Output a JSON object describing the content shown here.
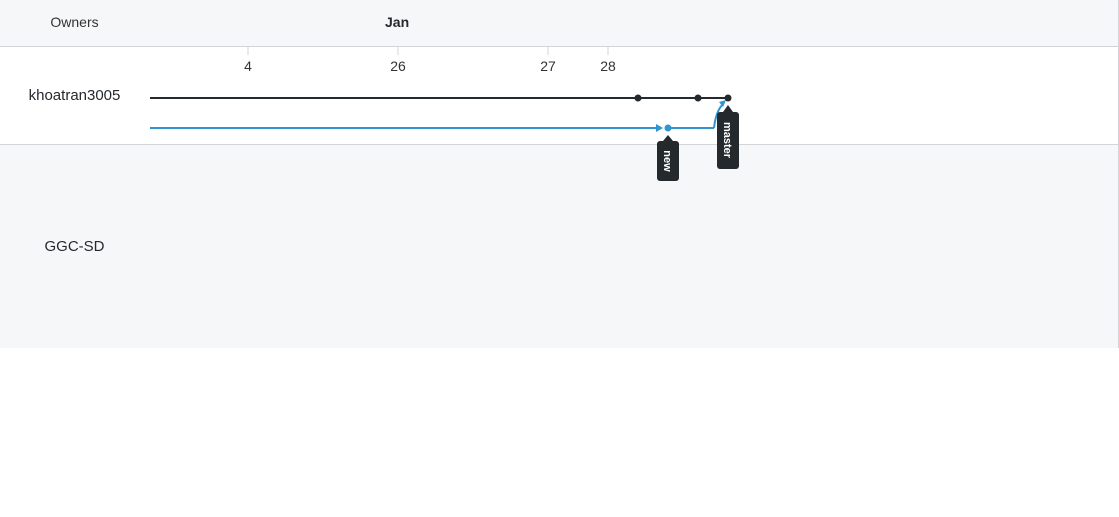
{
  "header": {
    "owners_label": "Owners",
    "month_label": "Jan"
  },
  "days": [
    {
      "label": "4"
    },
    {
      "label": "26"
    },
    {
      "label": "27"
    },
    {
      "label": "28"
    }
  ],
  "owners": [
    {
      "name": "khoatran3005"
    },
    {
      "name": "GGC-SD"
    }
  ],
  "branches": {
    "main": {
      "color": "#24292e"
    },
    "new": {
      "color": "#3094d1"
    }
  },
  "refs": [
    {
      "label": "new"
    },
    {
      "label": "master"
    }
  ]
}
